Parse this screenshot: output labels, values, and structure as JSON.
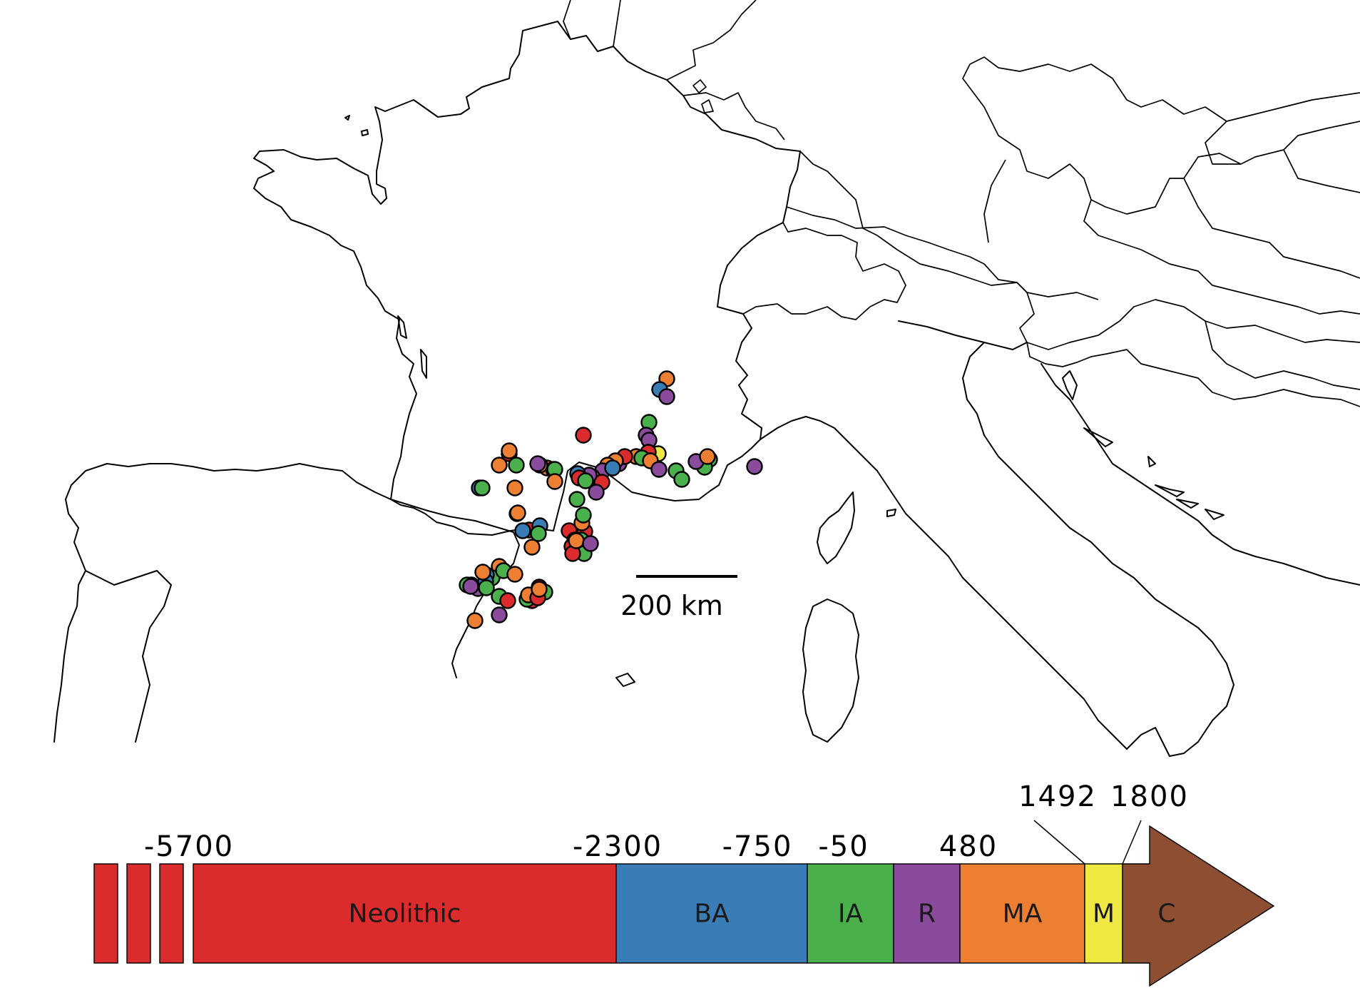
{
  "scale_bar": {
    "label": "200 km"
  },
  "colors": {
    "neolithic": "#dc2b2c",
    "bronze_age": "#3a7cb6",
    "iron_age": "#4ab04b",
    "roman": "#8b4b9d",
    "middle_ages": "#ec7f32",
    "modern": "#efe842",
    "contemporary": "#8d4e31"
  },
  "timeline": {
    "year_labels": [
      "-5700",
      "-2300",
      "-750",
      "-50",
      "480",
      "1492",
      "1800"
    ],
    "periods": [
      {
        "label": "Neolithic",
        "color_key": "neolithic"
      },
      {
        "label": "BA",
        "color_key": "bronze_age"
      },
      {
        "label": "IA",
        "color_key": "iron_age"
      },
      {
        "label": "R",
        "color_key": "roman"
      },
      {
        "label": "MA",
        "color_key": "middle_ages"
      },
      {
        "label": "M",
        "color_key": "modern"
      },
      {
        "label": "C",
        "color_key": "contemporary"
      }
    ]
  },
  "sites": [
    {
      "period": "middle_ages"
    },
    {
      "period": "bronze_age"
    },
    {
      "period": "roman"
    },
    {
      "period": "iron_age"
    },
    {
      "period": "roman"
    },
    {
      "period": "roman"
    },
    {
      "period": "neolithic"
    },
    {
      "period": "modern"
    },
    {
      "period": "neolithic"
    },
    {
      "period": "middle_ages"
    },
    {
      "period": "iron_age"
    },
    {
      "period": "middle_ages"
    },
    {
      "period": "roman"
    },
    {
      "period": "iron_age"
    },
    {
      "period": "iron_age"
    },
    {
      "period": "roman"
    },
    {
      "period": "iron_age"
    },
    {
      "period": "iron_age"
    },
    {
      "period": "roman"
    },
    {
      "period": "middle_ages"
    },
    {
      "period": "roman"
    },
    {
      "period": "neolithic"
    },
    {
      "period": "middle_ages"
    },
    {
      "period": "middle_ages"
    },
    {
      "period": "roman"
    },
    {
      "period": "bronze_age"
    },
    {
      "period": "middle_ages"
    },
    {
      "period": "neolithic"
    },
    {
      "period": "roman"
    },
    {
      "period": "bronze_age"
    },
    {
      "period": "neolithic"
    },
    {
      "period": "iron_age"
    },
    {
      "period": "middle_ages"
    },
    {
      "period": "iron_age"
    },
    {
      "period": "neolithic"
    },
    {
      "period": "middle_ages"
    },
    {
      "period": "iron_age"
    },
    {
      "period": "middle_ages"
    },
    {
      "period": "middle_ages"
    },
    {
      "period": "iron_age"
    },
    {
      "period": "middle_ages"
    },
    {
      "period": "roman"
    },
    {
      "period": "iron_age"
    },
    {
      "period": "neolithic"
    },
    {
      "period": "neolithic"
    },
    {
      "period": "middle_ages"
    },
    {
      "period": "neolithic"
    },
    {
      "period": "bronze_age"
    },
    {
      "period": "bronze_age"
    },
    {
      "period": "middle_ages"
    },
    {
      "period": "iron_age"
    },
    {
      "period": "iron_age"
    },
    {
      "period": "roman"
    },
    {
      "period": "neolithic"
    },
    {
      "period": "iron_age"
    },
    {
      "period": "middle_ages"
    },
    {
      "period": "iron_age"
    },
    {
      "period": "middle_ages"
    },
    {
      "period": "bronze_age"
    },
    {
      "period": "middle_ages"
    },
    {
      "period": "iron_age"
    },
    {
      "period": "neolithic"
    },
    {
      "period": "iron_age"
    },
    {
      "period": "neolithic"
    },
    {
      "period": "middle_ages"
    },
    {
      "period": "roman"
    },
    {
      "period": "middle_ages"
    },
    {
      "period": "iron_age"
    },
    {
      "period": "iron_age"
    },
    {
      "period": "middle_ages"
    },
    {
      "period": "roman"
    },
    {
      "period": "iron_age"
    },
    {
      "period": "roman"
    },
    {
      "period": "bronze_age"
    },
    {
      "period": "neolithic"
    },
    {
      "period": "iron_age"
    },
    {
      "period": "middle_ages"
    },
    {
      "period": "neolithic"
    },
    {
      "period": "iron_age"
    },
    {
      "period": "neolithic"
    },
    {
      "period": "middle_ages"
    },
    {
      "period": "bronze_age"
    },
    {
      "period": "iron_age"
    },
    {
      "period": "iron_age"
    },
    {
      "period": "neolithic"
    },
    {
      "period": "middle_ages"
    },
    {
      "period": "roman"
    },
    {
      "period": "middle_ages"
    }
  ]
}
